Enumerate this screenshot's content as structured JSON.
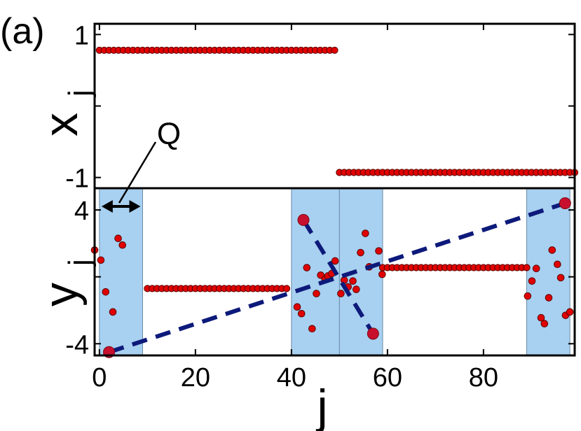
{
  "chart_data": [
    {
      "type": "scatter",
      "panel_label": "(a)",
      "xlabel": "",
      "ylabel_main": "x",
      "ylabel_sub": "j",
      "xlim": [
        -1,
        99
      ],
      "ylim": [
        -1.15,
        1.15
      ],
      "yticks": [
        1,
        -1
      ],
      "ytick_labels": [
        "1",
        "-1"
      ],
      "series": [
        {
          "x_start": 0,
          "x_end": 49,
          "y": 0.78
        },
        {
          "x_start": 50,
          "x_end": 99,
          "y": -0.93
        }
      ]
    },
    {
      "type": "scatter",
      "xlabel": "j",
      "ylabel_main": "y",
      "ylabel_sub": "j",
      "xlim": [
        -1,
        99
      ],
      "ylim": [
        -4.7,
        5.3
      ],
      "xticks": [
        0,
        20,
        40,
        60,
        80
      ],
      "xtick_labels": [
        "0",
        "20",
        "40",
        "60",
        "80"
      ],
      "yticks": [
        4,
        -4
      ],
      "ytick_labels": [
        "4",
        "-4"
      ],
      "annotation": "Q",
      "highlight_regions": [
        [
          0,
          9
        ],
        [
          40,
          50
        ],
        [
          50,
          59
        ],
        [
          89,
          98
        ]
      ],
      "lines": [
        {
          "x": [
            10,
            39
          ],
          "y": -0.7
        },
        {
          "x": [
            59,
            89
          ],
          "y": 0.55
        }
      ],
      "random_points": [
        {
          "x": -1,
          "y": 1.6
        },
        {
          "x": 0.3,
          "y": 1
        },
        {
          "x": 1.3,
          "y": -0.9
        },
        {
          "x": 2.8,
          "y": -2.1
        },
        {
          "x": 3.9,
          "y": 2.3
        },
        {
          "x": 4.8,
          "y": 1.9
        },
        {
          "x": 41.2,
          "y": -1.8
        },
        {
          "x": 42.1,
          "y": -2.2
        },
        {
          "x": 43.2,
          "y": 0.55
        },
        {
          "x": 44.3,
          "y": -3.1
        },
        {
          "x": 45.2,
          "y": -1
        },
        {
          "x": 46.1,
          "y": 0.1
        },
        {
          "x": 47,
          "y": -0.15
        },
        {
          "x": 47.6,
          "y": 0.05
        },
        {
          "x": 48.4,
          "y": 0.2
        },
        {
          "x": 49.1,
          "y": 0.95
        },
        {
          "x": 50.3,
          "y": -1
        },
        {
          "x": 51,
          "y": -0.2
        },
        {
          "x": 51.8,
          "y": -0.6
        },
        {
          "x": 52.8,
          "y": -0.25
        },
        {
          "x": 53.5,
          "y": -0.75
        },
        {
          "x": 54.4,
          "y": 1.45
        },
        {
          "x": 55.4,
          "y": 2.6
        },
        {
          "x": 56.2,
          "y": 0.6
        },
        {
          "x": 58.2,
          "y": 1.55
        },
        {
          "x": 58.9,
          "y": 0.15
        },
        {
          "x": 89.2,
          "y": -1.15
        },
        {
          "x": 90.1,
          "y": -0.25
        },
        {
          "x": 91,
          "y": 0.5
        },
        {
          "x": 92,
          "y": -2.45
        },
        {
          "x": 92.7,
          "y": -2.8
        },
        {
          "x": 93.6,
          "y": -1.25
        },
        {
          "x": 94.3,
          "y": 1.6
        },
        {
          "x": 95.4,
          "y": 0.75
        },
        {
          "x": 96.1,
          "y": -0.05
        },
        {
          "x": 97.1,
          "y": -2.3
        },
        {
          "x": 98,
          "y": -2.1
        }
      ],
      "large_points": [
        {
          "x": 2,
          "y": -4.5
        },
        {
          "x": 42.5,
          "y": 3.4
        },
        {
          "x": 57,
          "y": -3.4
        },
        {
          "x": 97,
          "y": 4.4
        }
      ],
      "dashed_lines": [
        {
          "x": [
            2,
            97
          ],
          "y": [
            -4.5,
            4.4
          ]
        },
        {
          "x": [
            42.5,
            57
          ],
          "y": [
            3.4,
            -3.4
          ]
        }
      ]
    }
  ],
  "colors": {
    "marker_fill": "#e00000",
    "marker_edge": "#5a0000",
    "large_marker": "#c8102e",
    "region_fill": "#a8d0f0",
    "region_edge": "#6a8ca8",
    "dashed_line": "#0d1a7a",
    "axis": "#000000"
  }
}
